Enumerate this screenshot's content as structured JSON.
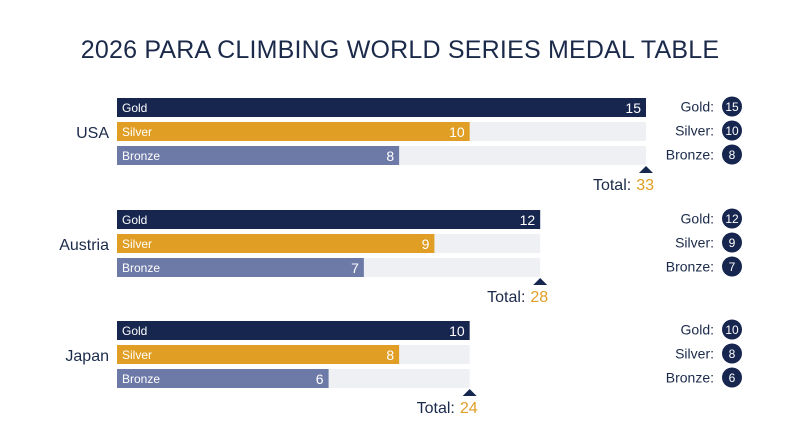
{
  "title": "2026 PARA CLIMBING WORLD SERIES MEDAL TABLE",
  "colors": {
    "gold": "#16264f",
    "silver": "#e09e24",
    "bronze": "#6d7aa8",
    "track": "#eef0f4",
    "text": "#1b2a4a",
    "total_accent": "#e09e24"
  },
  "total_label": "Total:",
  "chart_data": {
    "type": "bar",
    "orientation": "horizontal",
    "title": "2026 PARA CLIMBING WORLD SERIES MEDAL TABLE",
    "medal_labels": [
      "Gold",
      "Silver",
      "Bronze"
    ],
    "legend_labels": [
      "Gold:",
      "Silver:",
      "Bronze:"
    ],
    "xlim": [
      0,
      15
    ],
    "groups": [
      {
        "country": "USA",
        "values": [
          15,
          10,
          8
        ],
        "total": 33
      },
      {
        "country": "Austria",
        "values": [
          12,
          9,
          7
        ],
        "total": 28
      },
      {
        "country": "Japan",
        "values": [
          10,
          8,
          6
        ],
        "total": 24
      }
    ]
  }
}
